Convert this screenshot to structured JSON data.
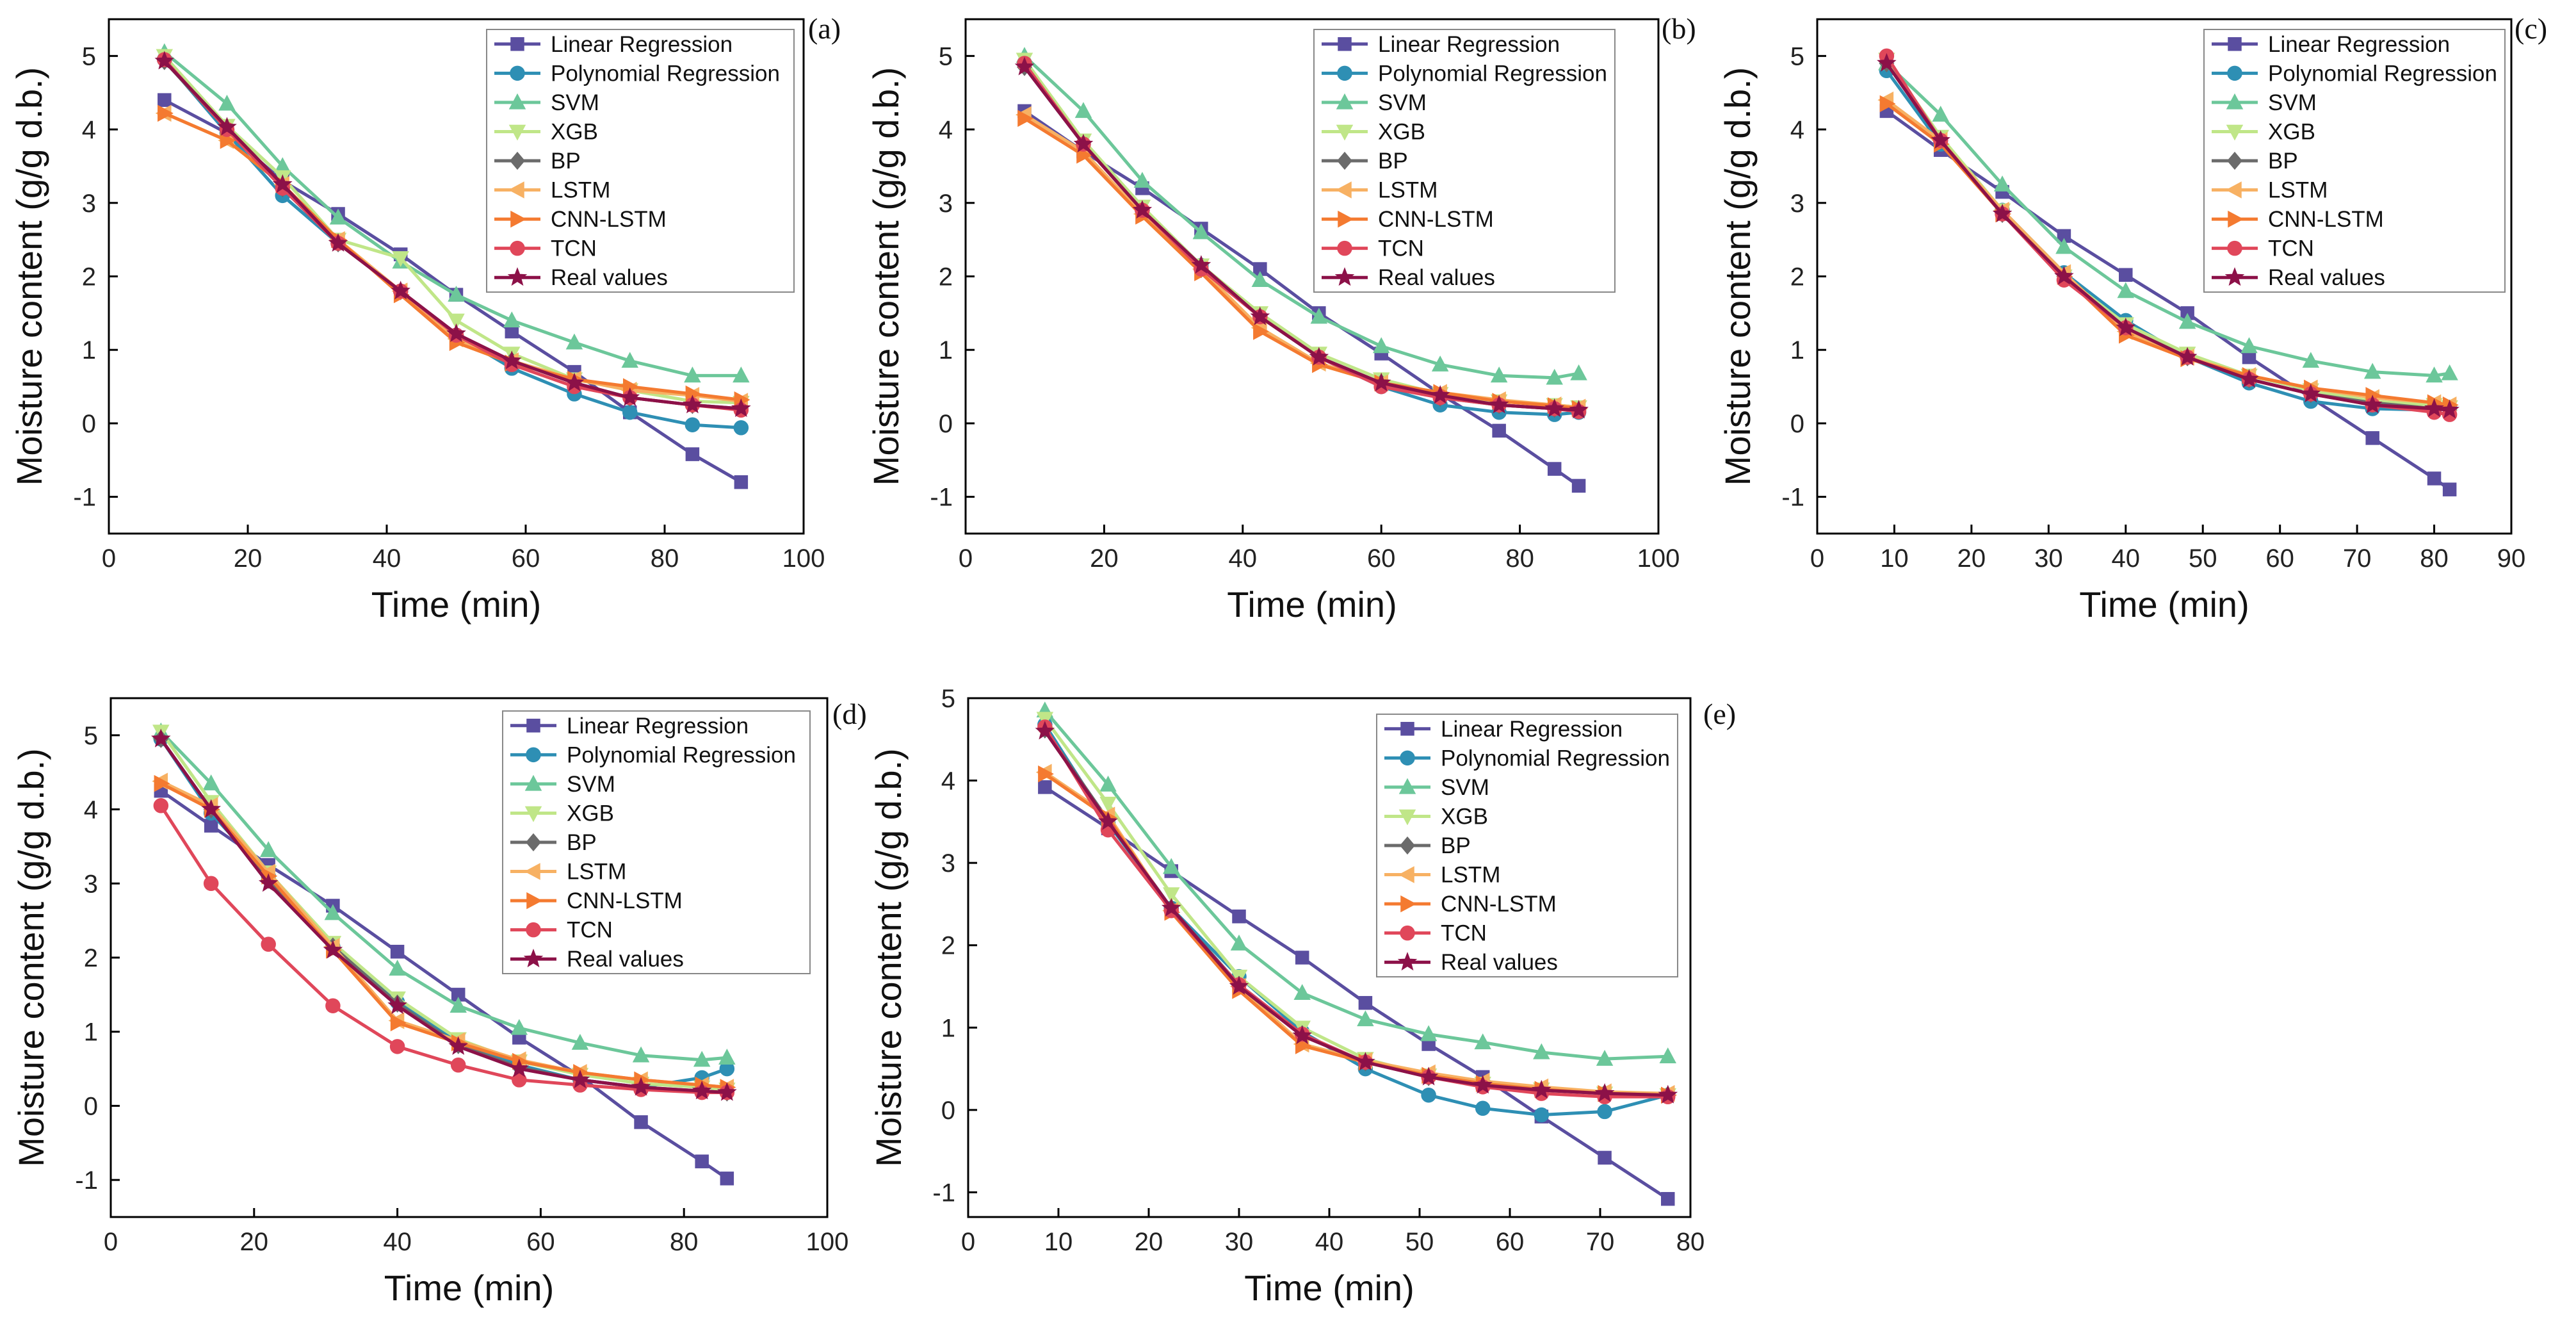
{
  "colors": {
    "Linear Regression": "#5a4ea0",
    "Polynomial Regression": "#2e8fb4",
    "SVM": "#6cc79a",
    "XGB": "#c0e688",
    "BP": "#6b6b6b",
    "LSTM": "#f7b163",
    "CNN-LSTM": "#f47a30",
    "TCN": "#e0475a",
    "Real values": "#8c1148"
  },
  "markers": {
    "Linear Regression": "square",
    "Polynomial Regression": "circle",
    "SVM": "triangle-up",
    "XGB": "triangle-down",
    "BP": "diamond",
    "LSTM": "triangle-left",
    "CNN-LSTM": "triangle-right",
    "TCN": "circle",
    "Real values": "star"
  },
  "chart_data": [
    {
      "type": "line",
      "panel_label": "(a)",
      "xlabel": "Time (min)",
      "ylabel": "Moisture content (g/g d.b.)",
      "xlim": [
        0,
        100
      ],
      "ylim": [
        -1.5,
        5.5
      ],
      "xticks": [
        "0",
        "20",
        "40",
        "60",
        "80",
        "100"
      ],
      "yticks": [
        "-1",
        "0",
        "1",
        "2",
        "3",
        "4",
        "5"
      ],
      "x": [
        8,
        17,
        25,
        33,
        42,
        50,
        58,
        67,
        75,
        84,
        91
      ],
      "legend": [
        "Linear Regression",
        "Polynomial Regression",
        "SVM",
        "XGB",
        "BP",
        "LSTM",
        "CNN-LSTM",
        "TCN",
        "Real values"
      ],
      "series": [
        {
          "name": "Linear Regression",
          "values": [
            4.4,
            3.95,
            3.3,
            2.85,
            2.3,
            1.75,
            1.25,
            0.7,
            0.15,
            -0.42,
            -0.8
          ]
        },
        {
          "name": "Polynomial Regression",
          "values": [
            4.95,
            3.95,
            3.1,
            2.45,
            1.8,
            1.2,
            0.75,
            0.4,
            0.15,
            -0.02,
            -0.06
          ]
        },
        {
          "name": "SVM",
          "values": [
            5.05,
            4.35,
            3.5,
            2.8,
            2.2,
            1.75,
            1.4,
            1.1,
            0.85,
            0.65,
            0.65
          ]
        },
        {
          "name": "XGB",
          "values": [
            5.0,
            4.05,
            3.35,
            2.5,
            2.25,
            1.4,
            0.95,
            0.6,
            0.45,
            0.3,
            0.28
          ]
        },
        {
          "name": "BP",
          "values": [
            4.93,
            4.0,
            3.2,
            2.45,
            1.8,
            1.2,
            0.85,
            0.55,
            0.35,
            0.25,
            0.2
          ]
        },
        {
          "name": "LSTM",
          "values": [
            4.22,
            3.85,
            3.25,
            2.5,
            1.8,
            1.15,
            0.85,
            0.6,
            0.45,
            0.38,
            0.3
          ]
        },
        {
          "name": "CNN-LSTM",
          "values": [
            4.22,
            3.85,
            3.25,
            2.5,
            1.75,
            1.1,
            0.82,
            0.6,
            0.5,
            0.4,
            0.32
          ]
        },
        {
          "name": "TCN",
          "values": [
            4.95,
            4.0,
            3.2,
            2.45,
            1.8,
            1.2,
            0.8,
            0.5,
            0.35,
            0.25,
            0.18
          ]
        },
        {
          "name": "Real values",
          "values": [
            4.93,
            4.03,
            3.25,
            2.45,
            1.8,
            1.22,
            0.85,
            0.55,
            0.35,
            0.25,
            0.2
          ]
        }
      ]
    },
    {
      "type": "line",
      "panel_label": "(b)",
      "xlabel": "Time (min)",
      "ylabel": "Moisture content (g/g d.b.)",
      "xlim": [
        0,
        100
      ],
      "ylim": [
        -1.5,
        5.5
      ],
      "xticks": [
        "0",
        "20",
        "40",
        "60",
        "80",
        "100"
      ],
      "yticks": [
        "-1",
        "0",
        "1",
        "2",
        "3",
        "4",
        "5"
      ],
      "x": [
        8.5,
        17,
        25.5,
        34,
        42.5,
        51,
        60,
        68.5,
        77,
        85,
        88.5
      ],
      "legend": [
        "Linear Regression",
        "Polynomial Regression",
        "SVM",
        "XGB",
        "BP",
        "LSTM",
        "CNN-LSTM",
        "TCN",
        "Real values"
      ],
      "series": [
        {
          "name": "Linear Regression",
          "values": [
            4.25,
            3.7,
            3.2,
            2.65,
            2.1,
            1.5,
            0.95,
            0.4,
            -0.1,
            -0.62,
            -0.85
          ]
        },
        {
          "name": "Polynomial Regression",
          "values": [
            4.9,
            3.8,
            2.9,
            2.15,
            1.45,
            0.9,
            0.5,
            0.25,
            0.15,
            0.12,
            0.15
          ]
        },
        {
          "name": "SVM",
          "values": [
            5.0,
            4.25,
            3.3,
            2.6,
            1.95,
            1.45,
            1.05,
            0.8,
            0.65,
            0.62,
            0.68
          ]
        },
        {
          "name": "XGB",
          "values": [
            4.95,
            3.85,
            2.95,
            2.15,
            1.5,
            0.95,
            0.6,
            0.4,
            0.3,
            0.25,
            0.22
          ]
        },
        {
          "name": "BP",
          "values": [
            4.85,
            3.8,
            2.9,
            2.1,
            1.45,
            0.9,
            0.55,
            0.35,
            0.25,
            0.2,
            0.18
          ]
        },
        {
          "name": "LSTM",
          "values": [
            4.2,
            3.7,
            2.85,
            2.1,
            1.3,
            0.82,
            0.55,
            0.42,
            0.32,
            0.25,
            0.22
          ]
        },
        {
          "name": "CNN-LSTM",
          "values": [
            4.15,
            3.65,
            2.82,
            2.05,
            1.25,
            0.8,
            0.55,
            0.42,
            0.3,
            0.24,
            0.2
          ]
        },
        {
          "name": "TCN",
          "values": [
            4.9,
            3.8,
            2.9,
            2.1,
            1.45,
            0.9,
            0.5,
            0.35,
            0.25,
            0.2,
            0.16
          ]
        },
        {
          "name": "Real values",
          "values": [
            4.85,
            3.8,
            2.9,
            2.15,
            1.45,
            0.9,
            0.55,
            0.38,
            0.25,
            0.2,
            0.18
          ]
        }
      ]
    },
    {
      "type": "line",
      "panel_label": "(c)",
      "xlabel": "Time (min)",
      "ylabel": "Moisture content (g/g d.b.)",
      "xlim": [
        0,
        90
      ],
      "ylim": [
        -1.5,
        5.5
      ],
      "xticks": [
        "0",
        "10",
        "20",
        "30",
        "40",
        "50",
        "60",
        "70",
        "80",
        "90"
      ],
      "yticks": [
        "-1",
        "0",
        "1",
        "2",
        "3",
        "4",
        "5"
      ],
      "x": [
        9,
        16,
        24,
        32,
        40,
        48,
        56,
        64,
        72,
        80,
        82
      ],
      "legend": [
        "Linear Regression",
        "Polynomial Regression",
        "SVM",
        "XGB",
        "BP",
        "LSTM",
        "CNN-LSTM",
        "TCN",
        "Real values"
      ],
      "series": [
        {
          "name": "Linear Regression",
          "values": [
            4.25,
            3.72,
            3.15,
            2.55,
            2.02,
            1.5,
            0.9,
            0.35,
            -0.2,
            -0.75,
            -0.9
          ]
        },
        {
          "name": "Polynomial Regression",
          "values": [
            4.8,
            3.8,
            2.9,
            2.05,
            1.4,
            0.9,
            0.55,
            0.3,
            0.2,
            0.18,
            0.22
          ]
        },
        {
          "name": "SVM",
          "values": [
            4.9,
            4.2,
            3.25,
            2.4,
            1.8,
            1.38,
            1.05,
            0.85,
            0.7,
            0.65,
            0.68
          ]
        },
        {
          "name": "XGB",
          "values": [
            4.95,
            3.9,
            2.9,
            2.0,
            1.35,
            0.95,
            0.65,
            0.45,
            0.3,
            0.25,
            0.22
          ]
        },
        {
          "name": "BP",
          "values": [
            4.9,
            3.85,
            2.85,
            2.0,
            1.3,
            0.9,
            0.6,
            0.4,
            0.28,
            0.2,
            0.18
          ]
        },
        {
          "name": "LSTM",
          "values": [
            4.4,
            3.85,
            2.9,
            2.05,
            1.25,
            0.9,
            0.65,
            0.48,
            0.35,
            0.28,
            0.25
          ]
        },
        {
          "name": "CNN-LSTM",
          "values": [
            4.35,
            3.8,
            2.85,
            2.0,
            1.2,
            0.88,
            0.65,
            0.48,
            0.38,
            0.28,
            0.25
          ]
        },
        {
          "name": "TCN",
          "values": [
            5.0,
            3.85,
            2.85,
            1.95,
            1.3,
            0.9,
            0.6,
            0.4,
            0.25,
            0.15,
            0.12
          ]
        },
        {
          "name": "Real values",
          "values": [
            4.9,
            3.85,
            2.85,
            2.0,
            1.3,
            0.9,
            0.6,
            0.4,
            0.25,
            0.2,
            0.18
          ]
        }
      ]
    },
    {
      "type": "line",
      "panel_label": "(d)",
      "xlabel": "Time (min)",
      "ylabel": "Moisture content (g/g d.b.)",
      "xlim": [
        0,
        100
      ],
      "ylim": [
        -1.5,
        5.5
      ],
      "xticks": [
        "0",
        "20",
        "40",
        "60",
        "80",
        "100"
      ],
      "yticks": [
        "-1",
        "0",
        "1",
        "2",
        "3",
        "4",
        "5"
      ],
      "x": [
        7,
        14,
        22,
        31,
        40,
        48.5,
        57,
        65.5,
        74,
        82.5,
        86
      ],
      "legend": [
        "Linear Regression",
        "Polynomial Regression",
        "SVM",
        "XGB",
        "BP",
        "LSTM",
        "CNN-LSTM",
        "TCN",
        "Real values"
      ],
      "series": [
        {
          "name": "Linear Regression",
          "values": [
            4.25,
            3.78,
            3.25,
            2.7,
            2.08,
            1.5,
            0.92,
            0.4,
            -0.22,
            -0.75,
            -0.98
          ]
        },
        {
          "name": "Polynomial Regression",
          "values": [
            4.95,
            3.95,
            3.1,
            2.15,
            1.4,
            0.85,
            0.55,
            0.35,
            0.25,
            0.38,
            0.5
          ]
        },
        {
          "name": "SVM",
          "values": [
            5.05,
            4.35,
            3.45,
            2.6,
            1.85,
            1.35,
            1.05,
            0.85,
            0.68,
            0.62,
            0.65
          ]
        },
        {
          "name": "XGB",
          "values": [
            5.05,
            4.1,
            3.15,
            2.2,
            1.45,
            0.9,
            0.6,
            0.42,
            0.3,
            0.25,
            0.22
          ]
        },
        {
          "name": "BP",
          "values": [
            4.95,
            4.0,
            3.05,
            2.15,
            1.38,
            0.82,
            0.52,
            0.35,
            0.25,
            0.2,
            0.18
          ]
        },
        {
          "name": "LSTM",
          "values": [
            4.38,
            4.05,
            3.15,
            2.15,
            1.15,
            0.88,
            0.62,
            0.45,
            0.35,
            0.28,
            0.25
          ]
        },
        {
          "name": "CNN-LSTM",
          "values": [
            4.35,
            4.0,
            3.1,
            2.1,
            1.12,
            0.85,
            0.6,
            0.45,
            0.35,
            0.28,
            0.25
          ]
        },
        {
          "name": "TCN",
          "values": [
            4.05,
            3.0,
            2.18,
            1.35,
            0.8,
            0.55,
            0.35,
            0.28,
            0.22,
            0.18,
            0.18
          ]
        },
        {
          "name": "Real values",
          "values": [
            4.95,
            4.0,
            3.0,
            2.1,
            1.35,
            0.8,
            0.5,
            0.35,
            0.25,
            0.2,
            0.18
          ]
        }
      ]
    },
    {
      "type": "line",
      "panel_label": "(e)",
      "xlabel": "Time (min)",
      "ylabel": "Moisture content (g/g d.b.)",
      "xlim": [
        0,
        80
      ],
      "ylim": [
        -1.3,
        5.0
      ],
      "xticks": [
        "0",
        "10",
        "20",
        "30",
        "40",
        "50",
        "60",
        "70",
        "80"
      ],
      "yticks": [
        "-1",
        "0",
        "1",
        "2",
        "3",
        "4",
        "5"
      ],
      "x": [
        8.5,
        15.5,
        22.5,
        30,
        37,
        44,
        51,
        57,
        63.5,
        70.5,
        77.5
      ],
      "legend": [
        "Linear Regression",
        "Polynomial Regression",
        "SVM",
        "XGB",
        "BP",
        "LSTM",
        "CNN-LSTM",
        "TCN",
        "Real values"
      ],
      "series": [
        {
          "name": "Linear Regression",
          "values": [
            3.92,
            3.42,
            2.9,
            2.35,
            1.85,
            1.3,
            0.8,
            0.4,
            -0.08,
            -0.58,
            -1.08
          ]
        },
        {
          "name": "Polynomial Regression",
          "values": [
            4.68,
            3.48,
            2.45,
            1.62,
            0.95,
            0.5,
            0.18,
            0.02,
            -0.06,
            -0.02,
            0.18
          ]
        },
        {
          "name": "SVM",
          "values": [
            4.85,
            3.95,
            2.95,
            2.02,
            1.42,
            1.1,
            0.92,
            0.82,
            0.7,
            0.62,
            0.65
          ]
        },
        {
          "name": "XGB",
          "values": [
            4.75,
            3.72,
            2.62,
            1.62,
            1.0,
            0.62,
            0.42,
            0.32,
            0.25,
            0.2,
            0.18
          ]
        },
        {
          "name": "BP",
          "values": [
            4.62,
            3.52,
            2.45,
            1.52,
            0.92,
            0.58,
            0.4,
            0.3,
            0.24,
            0.2,
            0.18
          ]
        },
        {
          "name": "LSTM",
          "values": [
            4.1,
            3.58,
            2.42,
            1.5,
            0.8,
            0.6,
            0.45,
            0.35,
            0.28,
            0.22,
            0.2
          ]
        },
        {
          "name": "CNN-LSTM",
          "values": [
            4.08,
            3.55,
            2.4,
            1.45,
            0.78,
            0.58,
            0.42,
            0.32,
            0.25,
            0.2,
            0.18
          ]
        },
        {
          "name": "TCN",
          "values": [
            4.65,
            3.4,
            2.42,
            1.52,
            0.92,
            0.58,
            0.4,
            0.28,
            0.2,
            0.16,
            0.16
          ]
        },
        {
          "name": "Real values",
          "values": [
            4.6,
            3.5,
            2.45,
            1.5,
            0.9,
            0.58,
            0.4,
            0.3,
            0.24,
            0.2,
            0.18
          ]
        }
      ]
    }
  ]
}
